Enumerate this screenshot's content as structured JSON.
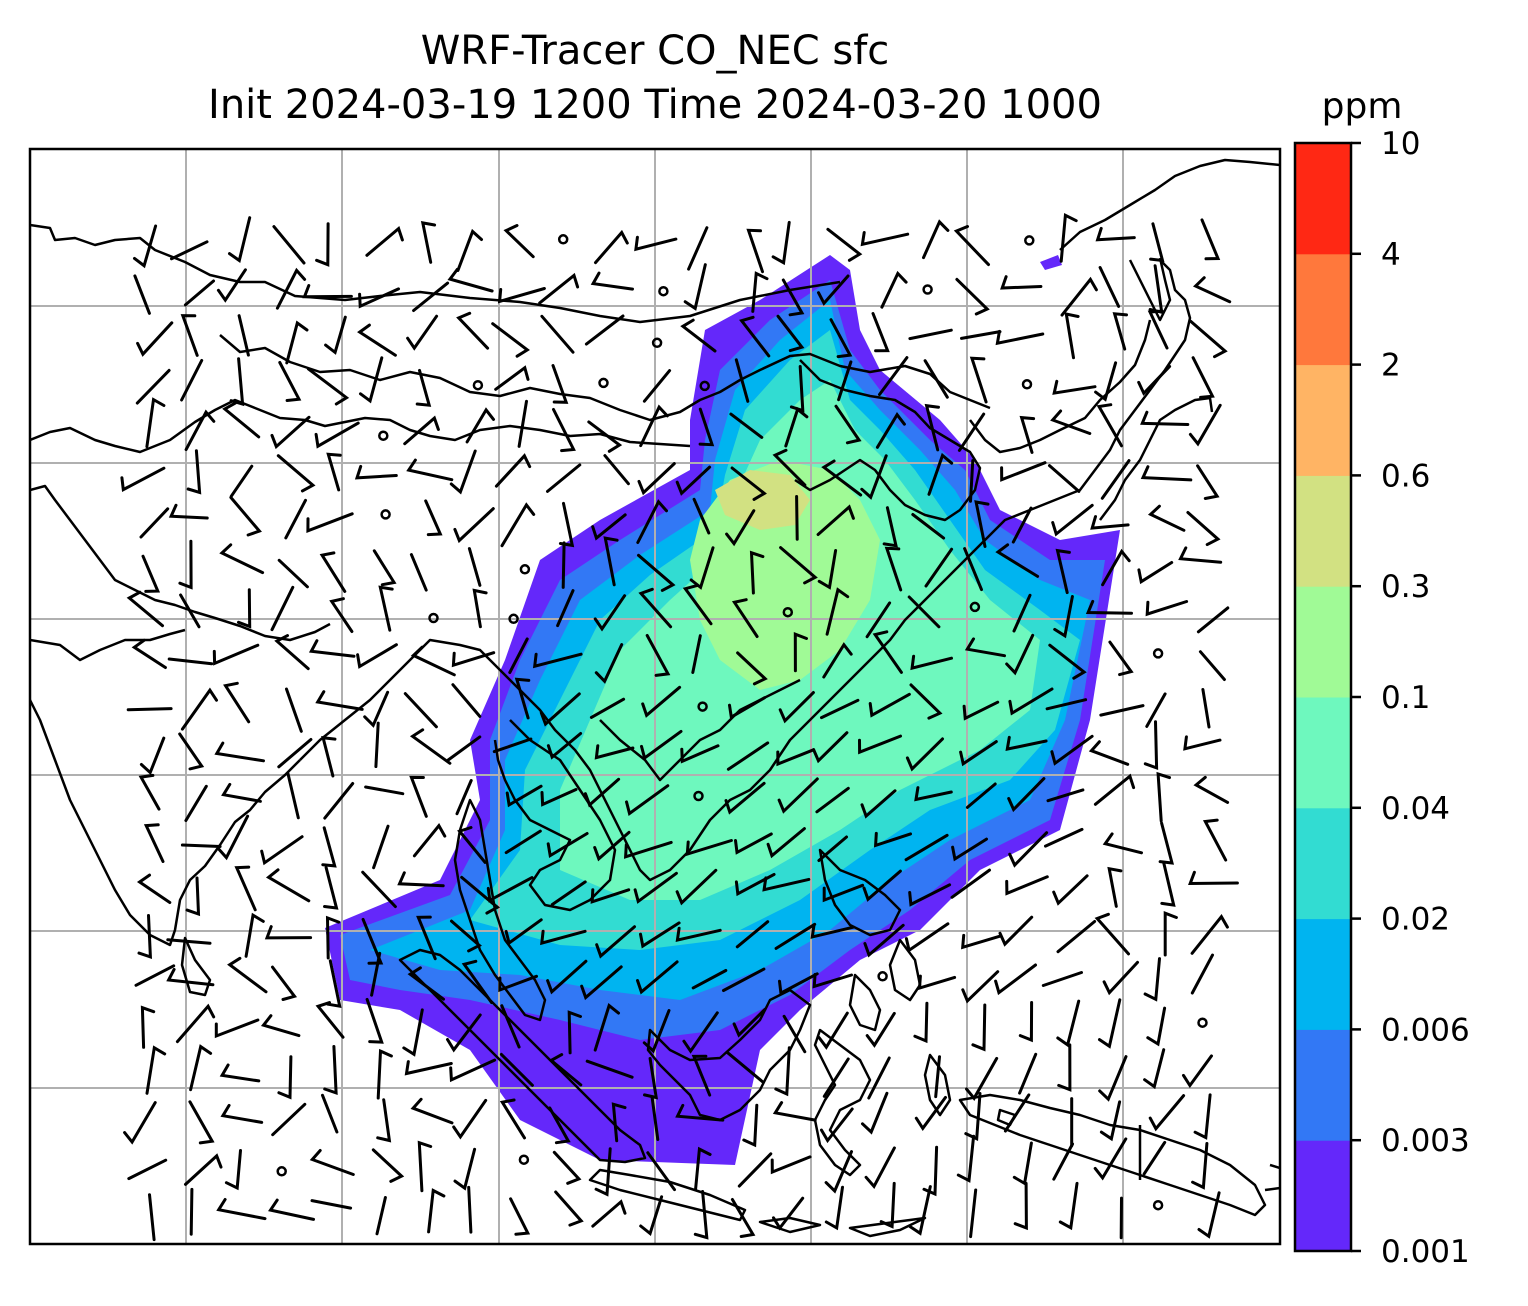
{
  "title": {
    "line1": "WRF-Tracer CO_NEC sfc",
    "line2": "Init 2024-03-19 1200 Time 2024-03-20 1000"
  },
  "colorbar": {
    "unit": "ppm",
    "levels": [
      "0.001",
      "0.003",
      "0.006",
      "0.02",
      "0.04",
      "0.1",
      "0.3",
      "0.6",
      "2",
      "4",
      "10"
    ],
    "colors": [
      "#6428fa",
      "#3278f5",
      "#00b4f0",
      "#32dcd2",
      "#6ef8be",
      "#a0fa96",
      "#d2e182",
      "#ffb464",
      "#ff783c",
      "#ff2814"
    ]
  },
  "map": {
    "frame_color": "#000000",
    "grid_color": "#b0b0b0",
    "coastline_color": "#000000",
    "barb_color": "#000000"
  }
}
